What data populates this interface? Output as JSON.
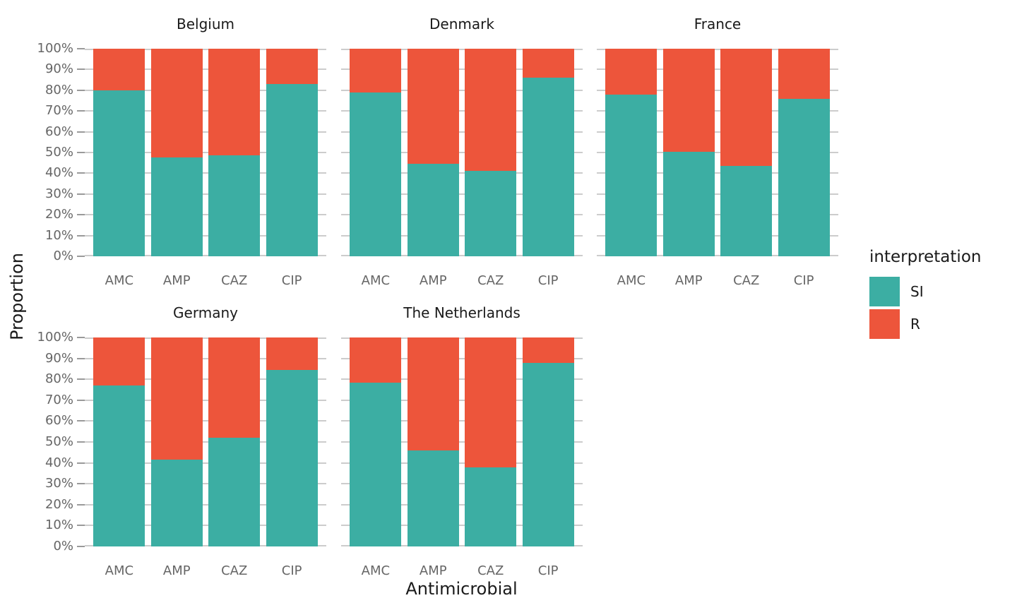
{
  "figure": {
    "background": "#ffffff",
    "x_axis_title": "Antimicrobial",
    "y_axis_title": "Proportion"
  },
  "legend": {
    "title": "interpretation",
    "items": [
      {
        "label": "SI",
        "color": "#3CAEA3"
      },
      {
        "label": "R",
        "color": "#ED553B"
      }
    ]
  },
  "chart_data": {
    "type": "bar",
    "stacked": true,
    "units": "percent",
    "title": "",
    "xlabel": "Antimicrobial",
    "ylabel": "Proportion",
    "ylim": [
      0,
      100
    ],
    "grid": true,
    "legend_position": "right",
    "legend_title": "interpretation",
    "series_names": [
      "SI",
      "R"
    ],
    "colors": {
      "SI": "#3CAEA3",
      "R": "#ED553B"
    },
    "categories": [
      "AMC",
      "AMP",
      "CAZ",
      "CIP"
    ],
    "y_tick_labels": [
      "0%",
      "10%",
      "20%",
      "30%",
      "40%",
      "50%",
      "60%",
      "70%",
      "80%",
      "90%",
      "100%"
    ],
    "facets": [
      {
        "title": "Belgium",
        "row": 0,
        "col": 0,
        "series": [
          {
            "name": "SI",
            "values": [
              80,
              47.5,
              48.5,
              83
            ]
          },
          {
            "name": "R",
            "values": [
              20,
              52.5,
              51.5,
              17
            ]
          }
        ]
      },
      {
        "title": "Denmark",
        "row": 0,
        "col": 1,
        "series": [
          {
            "name": "SI",
            "values": [
              79,
              44.5,
              41,
              86
            ]
          },
          {
            "name": "R",
            "values": [
              21,
              55.5,
              59,
              14
            ]
          }
        ]
      },
      {
        "title": "France",
        "row": 0,
        "col": 2,
        "series": [
          {
            "name": "SI",
            "values": [
              78,
              50.5,
              43.5,
              76
            ]
          },
          {
            "name": "R",
            "values": [
              22,
              49.5,
              56.5,
              24
            ]
          }
        ]
      },
      {
        "title": "Germany",
        "row": 1,
        "col": 0,
        "series": [
          {
            "name": "SI",
            "values": [
              77,
              41.5,
              52,
              84.5
            ]
          },
          {
            "name": "R",
            "values": [
              23,
              58.5,
              48,
              15.5
            ]
          }
        ]
      },
      {
        "title": "The Netherlands",
        "row": 1,
        "col": 1,
        "series": [
          {
            "name": "SI",
            "values": [
              78.5,
              46,
              38,
              88
            ]
          },
          {
            "name": "R",
            "values": [
              21.5,
              54,
              62,
              12
            ]
          }
        ]
      }
    ]
  },
  "style": {
    "gridline_color": "#cccccc",
    "tick_color": "#9a9a9a",
    "tick_label_color": "#666666",
    "title_color": "#1a1a1a"
  }
}
